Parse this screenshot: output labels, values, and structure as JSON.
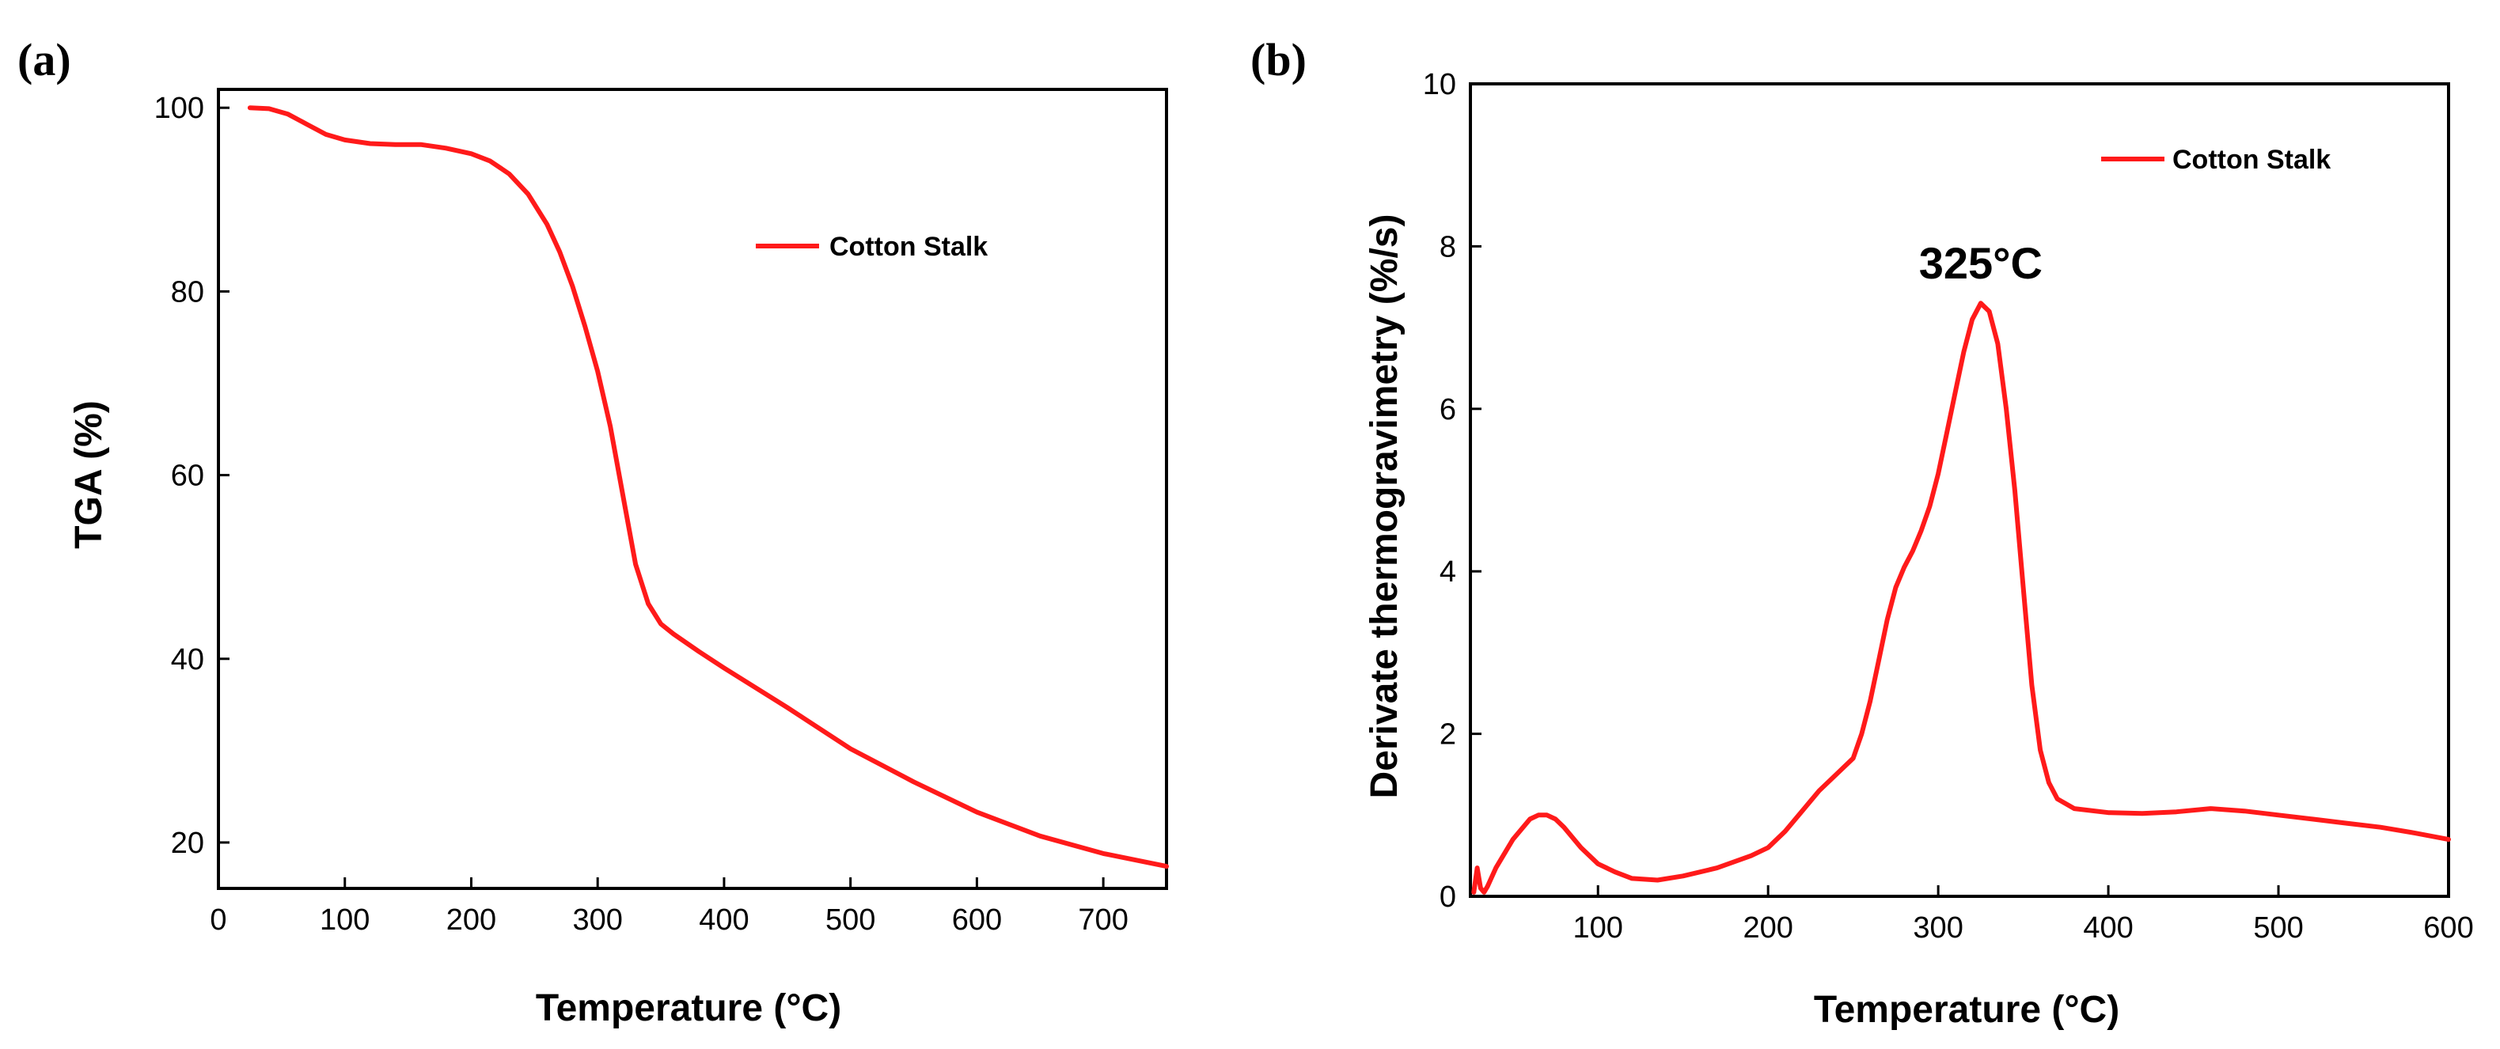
{
  "chart_data": [
    {
      "type": "line",
      "panel_label": "(a)",
      "title": "",
      "xlabel": "Temperature (°C)",
      "ylabel": "TGA (%)",
      "xlim": [
        0,
        750
      ],
      "ylim": [
        15,
        102
      ],
      "xticks": [
        0,
        100,
        200,
        300,
        400,
        500,
        600,
        700
      ],
      "yticks": [
        20,
        40,
        60,
        80,
        100
      ],
      "grid": false,
      "legend_position": "top-right",
      "series": [
        {
          "name": "Cotton Stalk",
          "color": "#ff1a1a",
          "x": [
            25,
            40,
            55,
            70,
            85,
            100,
            120,
            140,
            160,
            180,
            200,
            215,
            230,
            245,
            260,
            270,
            280,
            290,
            300,
            310,
            320,
            330,
            340,
            350,
            360,
            380,
            400,
            450,
            500,
            550,
            600,
            650,
            700,
            750
          ],
          "y": [
            100,
            99.9,
            99.3,
            98.2,
            97.1,
            96.5,
            96.1,
            96.0,
            96.0,
            95.6,
            95.0,
            94.2,
            92.8,
            90.6,
            87.3,
            84.3,
            80.6,
            76.2,
            71.3,
            65.3,
            57.8,
            50.3,
            46.0,
            43.8,
            42.7,
            40.8,
            39.0,
            34.7,
            30.2,
            26.6,
            23.3,
            20.7,
            18.8,
            17.4
          ]
        }
      ]
    },
    {
      "type": "line",
      "panel_label": "(b)",
      "title": "",
      "xlabel": "Temperature (°C)",
      "ylabel": "Derivate thermogravimetry (%/s)",
      "xlim": [
        25,
        600
      ],
      "ylim": [
        0,
        10
      ],
      "xticks": [
        100,
        200,
        300,
        400,
        500,
        600
      ],
      "yticks": [
        0,
        2,
        4,
        6,
        8,
        10
      ],
      "grid": false,
      "legend_position": "top-right",
      "annotations": [
        {
          "text": "325°C",
          "x": 325,
          "y": 7.8
        }
      ],
      "series": [
        {
          "name": "Cotton Stalk",
          "color": "#ff1a1a",
          "x": [
            27,
            29,
            31,
            33,
            35,
            40,
            50,
            60,
            65,
            70,
            75,
            80,
            90,
            100,
            110,
            120,
            135,
            150,
            170,
            190,
            200,
            210,
            220,
            230,
            240,
            250,
            255,
            260,
            265,
            270,
            275,
            280,
            285,
            290,
            295,
            300,
            305,
            310,
            315,
            320,
            325,
            330,
            335,
            340,
            345,
            350,
            355,
            360,
            365,
            370,
            380,
            400,
            420,
            440,
            460,
            480,
            500,
            520,
            540,
            560,
            580,
            600
          ],
          "y": [
            0.05,
            0.35,
            0.1,
            0.05,
            0.12,
            0.35,
            0.7,
            0.95,
            1.0,
            1.0,
            0.95,
            0.85,
            0.6,
            0.4,
            0.3,
            0.22,
            0.2,
            0.25,
            0.35,
            0.5,
            0.6,
            0.8,
            1.05,
            1.3,
            1.5,
            1.7,
            2.0,
            2.4,
            2.9,
            3.4,
            3.8,
            4.05,
            4.25,
            4.5,
            4.8,
            5.2,
            5.7,
            6.2,
            6.7,
            7.1,
            7.3,
            7.2,
            6.8,
            6.0,
            5.0,
            3.8,
            2.6,
            1.8,
            1.4,
            1.2,
            1.08,
            1.03,
            1.02,
            1.04,
            1.08,
            1.05,
            1.0,
            0.95,
            0.9,
            0.85,
            0.78,
            0.7
          ]
        }
      ]
    }
  ]
}
